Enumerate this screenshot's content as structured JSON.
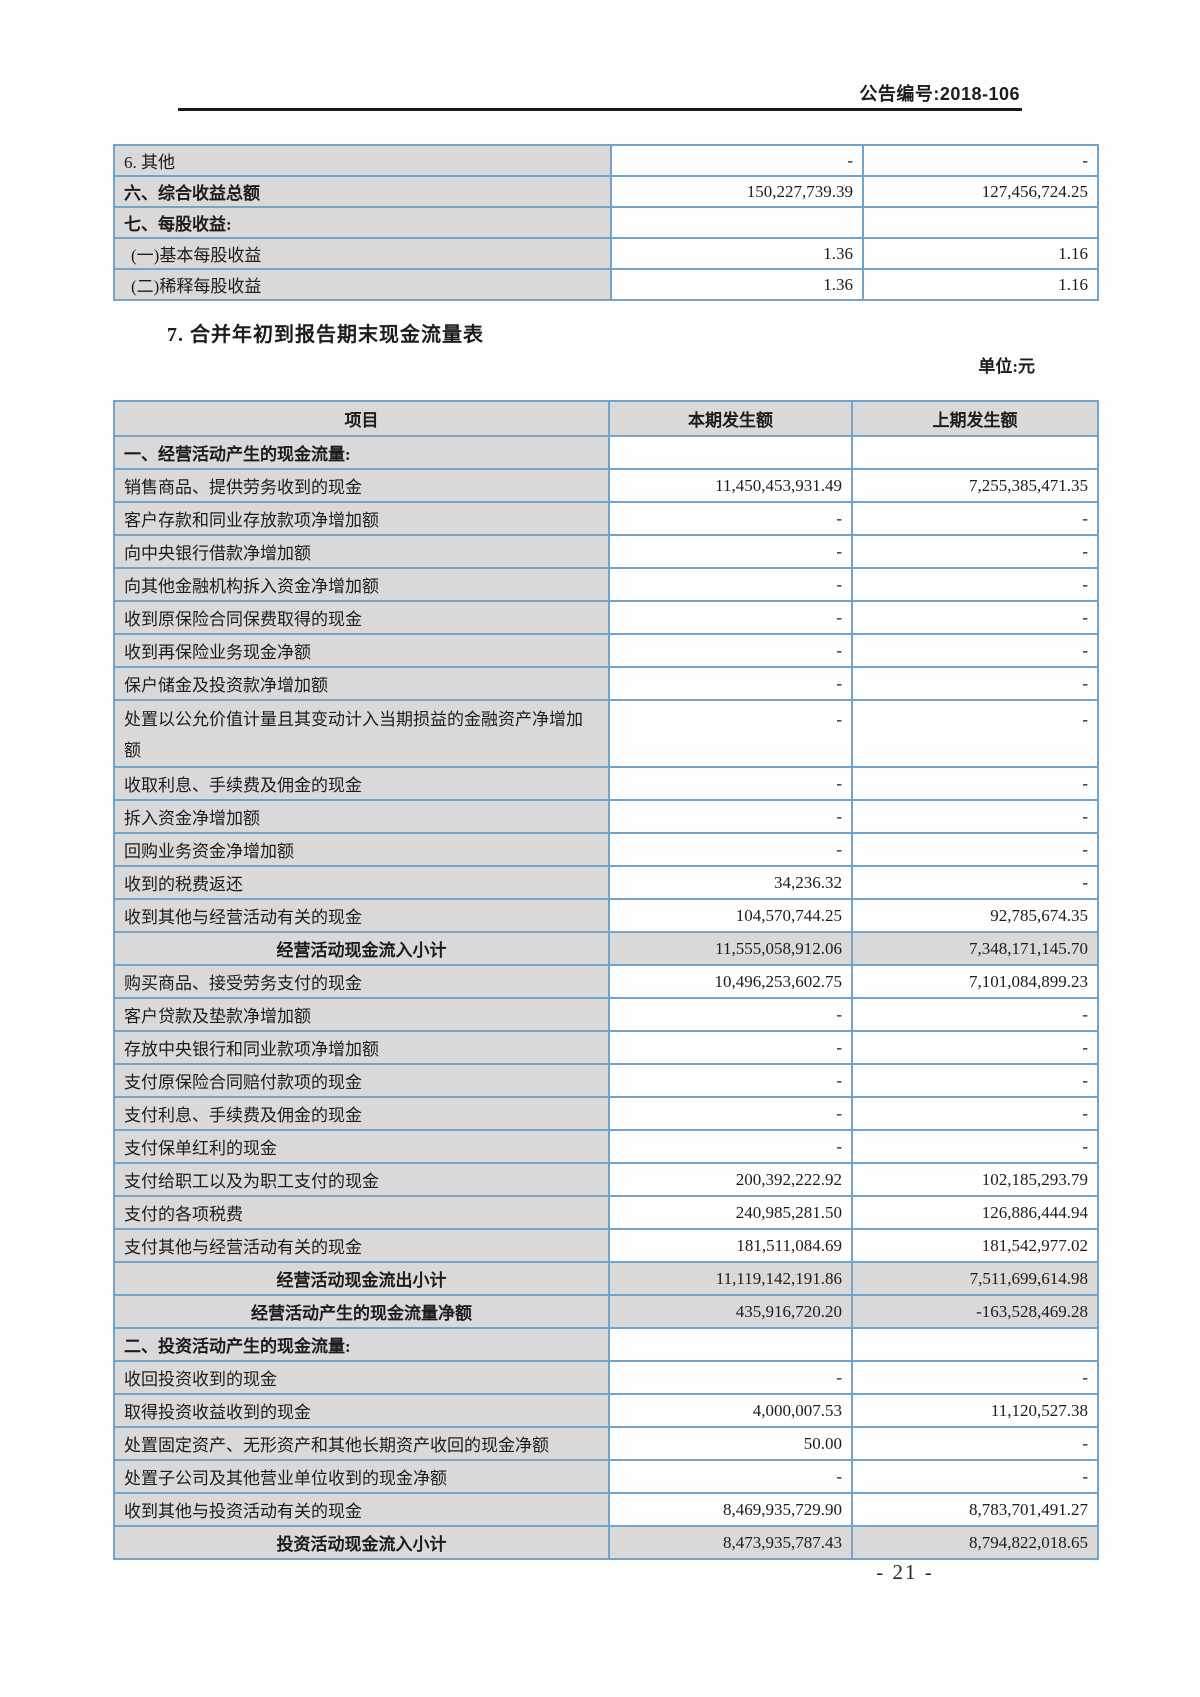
{
  "header": {
    "announcement_label": "公告编号:",
    "announcement_number": "2018-106"
  },
  "section": {
    "title": "7. 合并年初到报告期末现金流量表",
    "unit": "单位:元"
  },
  "footer": {
    "page_number": "- 21 -"
  },
  "theme": {
    "table_border_blue": "#73a2ca",
    "cell_gray": "#d9d9d9",
    "rule_black": "#1a1a1a"
  },
  "top_table": {
    "rows": [
      {
        "label": "6. 其他",
        "current": "-",
        "prior": "-",
        "style": "item"
      },
      {
        "label": "六、综合收益总额",
        "current": "150,227,739.39",
        "prior": "127,456,724.25",
        "style": "total"
      },
      {
        "label": "七、每股收益:",
        "current": "",
        "prior": "",
        "style": "total"
      },
      {
        "label": "(一)基本每股收益",
        "current": "1.36",
        "prior": "1.16",
        "style": "sub"
      },
      {
        "label": "(二)稀释每股收益",
        "current": "1.36",
        "prior": "1.16",
        "style": "sub"
      }
    ]
  },
  "cash_flow_table": {
    "headers": [
      "项目",
      "本期发生额",
      "上期发生额"
    ],
    "rows": [
      {
        "label": "一、经营活动产生的现金流量:",
        "current": "",
        "prior": "",
        "style": "section"
      },
      {
        "label": "销售商品、提供劳务收到的现金",
        "current": "11,450,453,931.49",
        "prior": "7,255,385,471.35",
        "style": "item"
      },
      {
        "label": "客户存款和同业存放款项净增加额",
        "current": "-",
        "prior": "-",
        "style": "item"
      },
      {
        "label": "向中央银行借款净增加额",
        "current": "-",
        "prior": "-",
        "style": "item"
      },
      {
        "label": "向其他金融机构拆入资金净增加额",
        "current": "-",
        "prior": "-",
        "style": "item"
      },
      {
        "label": "收到原保险合同保费取得的现金",
        "current": "-",
        "prior": "-",
        "style": "item"
      },
      {
        "label": "收到再保险业务现金净额",
        "current": "-",
        "prior": "-",
        "style": "item"
      },
      {
        "label": "保户储金及投资款净增加额",
        "current": "-",
        "prior": "-",
        "style": "item"
      },
      {
        "label": "处置以公允价值计量且其变动计入当期损益的金融资产净增加额",
        "current": "-",
        "prior": "-",
        "style": "item",
        "tall": true
      },
      {
        "label": "收取利息、手续费及佣金的现金",
        "current": "-",
        "prior": "-",
        "style": "item"
      },
      {
        "label": "拆入资金净增加额",
        "current": "-",
        "prior": "-",
        "style": "item"
      },
      {
        "label": "回购业务资金净增加额",
        "current": "-",
        "prior": "-",
        "style": "item"
      },
      {
        "label": "收到的税费返还",
        "current": "34,236.32",
        "prior": "-",
        "style": "item"
      },
      {
        "label": "收到其他与经营活动有关的现金",
        "current": "104,570,744.25",
        "prior": "92,785,674.35",
        "style": "item"
      },
      {
        "label": "经营活动现金流入小计",
        "current": "11,555,058,912.06",
        "prior": "7,348,171,145.70",
        "style": "subtotal"
      },
      {
        "label": "购买商品、接受劳务支付的现金",
        "current": "10,496,253,602.75",
        "prior": "7,101,084,899.23",
        "style": "item"
      },
      {
        "label": "客户贷款及垫款净增加额",
        "current": "-",
        "prior": "-",
        "style": "item"
      },
      {
        "label": "存放中央银行和同业款项净增加额",
        "current": "-",
        "prior": "-",
        "style": "item"
      },
      {
        "label": "支付原保险合同赔付款项的现金",
        "current": "-",
        "prior": "-",
        "style": "item"
      },
      {
        "label": "支付利息、手续费及佣金的现金",
        "current": "-",
        "prior": "-",
        "style": "item"
      },
      {
        "label": "支付保单红利的现金",
        "current": "-",
        "prior": "-",
        "style": "item"
      },
      {
        "label": "支付给职工以及为职工支付的现金",
        "current": "200,392,222.92",
        "prior": "102,185,293.79",
        "style": "item"
      },
      {
        "label": "支付的各项税费",
        "current": "240,985,281.50",
        "prior": "126,886,444.94",
        "style": "item"
      },
      {
        "label": "支付其他与经营活动有关的现金",
        "current": "181,511,084.69",
        "prior": "181,542,977.02",
        "style": "item"
      },
      {
        "label": "经营活动现金流出小计",
        "current": "11,119,142,191.86",
        "prior": "7,511,699,614.98",
        "style": "subtotal"
      },
      {
        "label": "经营活动产生的现金流量净额",
        "current": "435,916,720.20",
        "prior": "-163,528,469.28",
        "style": "subtotal"
      },
      {
        "label": "二、投资活动产生的现金流量:",
        "current": "",
        "prior": "",
        "style": "section"
      },
      {
        "label": "收回投资收到的现金",
        "current": "-",
        "prior": "-",
        "style": "item"
      },
      {
        "label": "取得投资收益收到的现金",
        "current": "4,000,007.53",
        "prior": "11,120,527.38",
        "style": "item"
      },
      {
        "label": "处置固定资产、无形资产和其他长期资产收回的现金净额",
        "current": "50.00",
        "prior": "-",
        "style": "item"
      },
      {
        "label": "处置子公司及其他营业单位收到的现金净额",
        "current": "-",
        "prior": "-",
        "style": "item"
      },
      {
        "label": "收到其他与投资活动有关的现金",
        "current": "8,469,935,729.90",
        "prior": "8,783,701,491.27",
        "style": "item"
      },
      {
        "label": "投资活动现金流入小计",
        "current": "8,473,935,787.43",
        "prior": "8,794,822,018.65",
        "style": "subtotal"
      }
    ]
  }
}
